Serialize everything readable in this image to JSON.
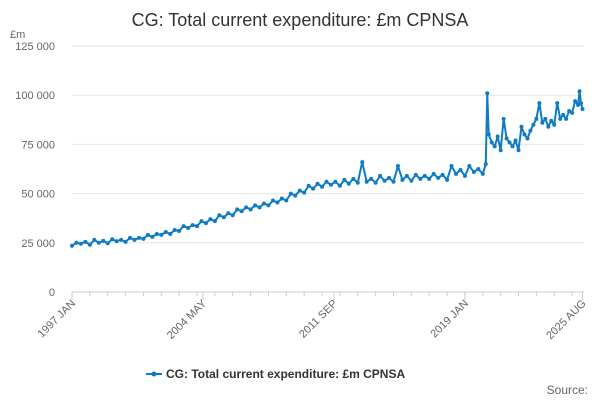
{
  "chart_data": {
    "type": "line",
    "title": "CG: Total current expenditure: £m CPNSA",
    "unit_label": "£m",
    "ylim": [
      0,
      125000
    ],
    "y_ticks": [
      0,
      25000,
      50000,
      75000,
      100000,
      125000
    ],
    "y_tick_labels": [
      "0",
      "25 000",
      "50 000",
      "75 000",
      "100 000",
      "125 000"
    ],
    "x_tick_labels": [
      "1997 JAN",
      "2004 MAY",
      "2011 SEP",
      "2019 JAN",
      "2025 AUG"
    ],
    "x_tick_dates": [
      "1997-01",
      "2004-05",
      "2011-09",
      "2019-01",
      "2025-08"
    ],
    "xlim": [
      "1997-01",
      "2025-09"
    ],
    "grid": true,
    "legend_position": "bottom",
    "series": [
      {
        "name": "CG: Total current expenditure: £m CPNSA",
        "color": "#0f7bc4",
        "points": [
          [
            "1997-01",
            23500
          ],
          [
            "1997-04",
            25000
          ],
          [
            "1997-07",
            24500
          ],
          [
            "1997-10",
            25500
          ],
          [
            "1998-01",
            24000
          ],
          [
            "1998-04",
            26500
          ],
          [
            "1998-07",
            25000
          ],
          [
            "1998-10",
            26000
          ],
          [
            "1999-01",
            24800
          ],
          [
            "1999-04",
            26800
          ],
          [
            "1999-07",
            25800
          ],
          [
            "1999-10",
            26500
          ],
          [
            "2000-01",
            25500
          ],
          [
            "2000-04",
            27500
          ],
          [
            "2000-07",
            26500
          ],
          [
            "2000-10",
            27500
          ],
          [
            "2001-01",
            27000
          ],
          [
            "2001-04",
            29000
          ],
          [
            "2001-07",
            28000
          ],
          [
            "2001-10",
            29500
          ],
          [
            "2002-01",
            29000
          ],
          [
            "2002-04",
            30500
          ],
          [
            "2002-07",
            29500
          ],
          [
            "2002-10",
            31500
          ],
          [
            "2003-01",
            31000
          ],
          [
            "2003-04",
            33500
          ],
          [
            "2003-07",
            32500
          ],
          [
            "2003-10",
            34000
          ],
          [
            "2004-01",
            33500
          ],
          [
            "2004-04",
            36000
          ],
          [
            "2004-07",
            35000
          ],
          [
            "2004-10",
            37000
          ],
          [
            "2005-01",
            36000
          ],
          [
            "2005-04",
            39000
          ],
          [
            "2005-07",
            38000
          ],
          [
            "2005-10",
            40000
          ],
          [
            "2006-01",
            39000
          ],
          [
            "2006-04",
            42000
          ],
          [
            "2006-07",
            41000
          ],
          [
            "2006-10",
            43000
          ],
          [
            "2007-01",
            42000
          ],
          [
            "2007-04",
            44000
          ],
          [
            "2007-07",
            43000
          ],
          [
            "2007-10",
            45000
          ],
          [
            "2008-01",
            44000
          ],
          [
            "2008-04",
            46500
          ],
          [
            "2008-07",
            45500
          ],
          [
            "2008-10",
            47500
          ],
          [
            "2009-01",
            46500
          ],
          [
            "2009-04",
            50000
          ],
          [
            "2009-07",
            49000
          ],
          [
            "2009-10",
            51500
          ],
          [
            "2010-01",
            50500
          ],
          [
            "2010-04",
            54000
          ],
          [
            "2010-07",
            52500
          ],
          [
            "2010-10",
            55000
          ],
          [
            "2011-01",
            53500
          ],
          [
            "2011-04",
            56000
          ],
          [
            "2011-07",
            54500
          ],
          [
            "2011-10",
            56000
          ],
          [
            "2012-01",
            54000
          ],
          [
            "2012-04",
            57000
          ],
          [
            "2012-07",
            55000
          ],
          [
            "2012-10",
            57500
          ],
          [
            "2013-01",
            55500
          ],
          [
            "2013-04",
            66000
          ],
          [
            "2013-07",
            56000
          ],
          [
            "2013-10",
            57500
          ],
          [
            "2014-01",
            55500
          ],
          [
            "2014-04",
            59000
          ],
          [
            "2014-07",
            56500
          ],
          [
            "2014-10",
            58000
          ],
          [
            "2015-01",
            56000
          ],
          [
            "2015-04",
            64000
          ],
          [
            "2015-07",
            57000
          ],
          [
            "2015-10",
            59000
          ],
          [
            "2016-01",
            56500
          ],
          [
            "2016-04",
            59500
          ],
          [
            "2016-07",
            57500
          ],
          [
            "2016-10",
            59000
          ],
          [
            "2017-01",
            57500
          ],
          [
            "2017-04",
            60000
          ],
          [
            "2017-07",
            58000
          ],
          [
            "2017-10",
            59500
          ],
          [
            "2018-01",
            57000
          ],
          [
            "2018-04",
            64000
          ],
          [
            "2018-07",
            60000
          ],
          [
            "2018-10",
            62000
          ],
          [
            "2019-01",
            59000
          ],
          [
            "2019-04",
            64000
          ],
          [
            "2019-07",
            61000
          ],
          [
            "2019-10",
            62500
          ],
          [
            "2020-01",
            60000
          ],
          [
            "2020-03",
            65000
          ],
          [
            "2020-04",
            101000
          ],
          [
            "2020-05",
            80000
          ],
          [
            "2020-07",
            76000
          ],
          [
            "2020-09",
            74000
          ],
          [
            "2020-11",
            79000
          ],
          [
            "2021-01",
            72000
          ],
          [
            "2021-03",
            88000
          ],
          [
            "2021-05",
            78000
          ],
          [
            "2021-07",
            76000
          ],
          [
            "2021-09",
            74000
          ],
          [
            "2021-11",
            77000
          ],
          [
            "2022-01",
            72000
          ],
          [
            "2022-03",
            84000
          ],
          [
            "2022-05",
            80000
          ],
          [
            "2022-07",
            78000
          ],
          [
            "2022-09",
            82000
          ],
          [
            "2022-11",
            85000
          ],
          [
            "2023-01",
            88000
          ],
          [
            "2023-03",
            96000
          ],
          [
            "2023-05",
            86000
          ],
          [
            "2023-07",
            88000
          ],
          [
            "2023-09",
            84000
          ],
          [
            "2023-11",
            87000
          ],
          [
            "2024-01",
            85000
          ],
          [
            "2024-03",
            96000
          ],
          [
            "2024-05",
            88000
          ],
          [
            "2024-07",
            90000
          ],
          [
            "2024-09",
            88000
          ],
          [
            "2024-11",
            92000
          ],
          [
            "2025-01",
            91000
          ],
          [
            "2025-03",
            97000
          ],
          [
            "2025-05",
            95000
          ],
          [
            "2025-06",
            102000
          ],
          [
            "2025-07",
            96000
          ],
          [
            "2025-08",
            93000
          ]
        ]
      }
    ]
  },
  "footer": {
    "source_label": "Source:"
  }
}
